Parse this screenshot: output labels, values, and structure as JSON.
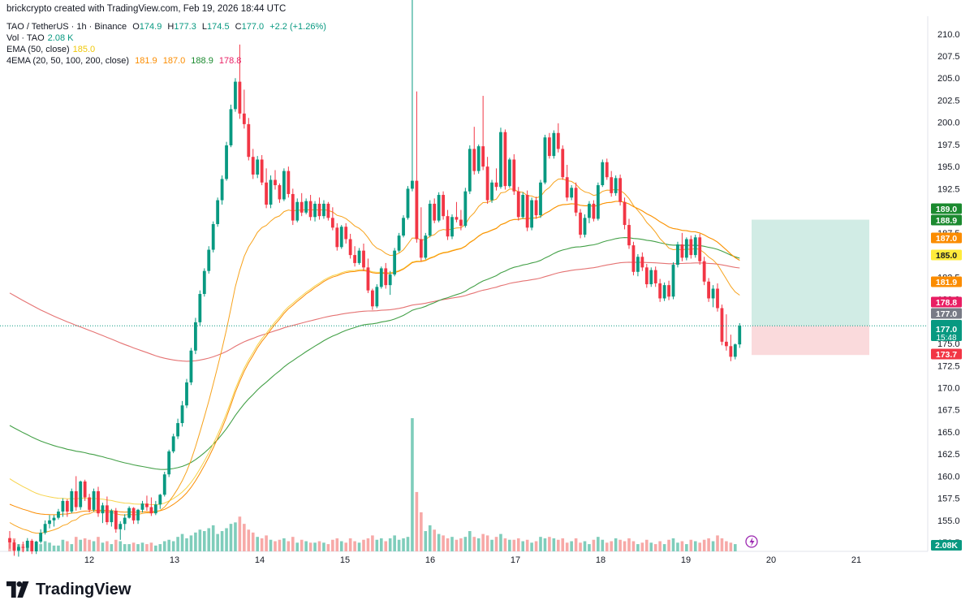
{
  "header": {
    "attribution": "brickcrypto created with TradingView.com, Feb 19, 2026 18:44 UTC",
    "symbol": "TAO / TetherUS · 1h · Binance",
    "o_label": "O",
    "o_value": "174.9",
    "h_label": "H",
    "h_value": "177.3",
    "l_label": "L",
    "l_value": "174.5",
    "c_label": "C",
    "c_value": "177.0",
    "change": "+2.2 (+1.26%)",
    "vol_label": "Vol · TAO",
    "vol_value": "2.08 K",
    "ema_label": "EMA (50, close)",
    "ema_value": "185.0",
    "ema4_label": "4EMA (20, 50, 100, 200, close)",
    "ema4_values": [
      "181.9",
      "187.0",
      "188.9",
      "178.8"
    ]
  },
  "brand": {
    "name": "TradingView"
  },
  "colors": {
    "up": "#089981",
    "down": "#f23645",
    "ema20": "#f7a21b",
    "ema50_yellow": "#f7d34a",
    "ema50": "#fb8c00",
    "ema100": "#43a047",
    "ema200": "#e57373",
    "target_zone": "#c9e9e0",
    "stop_zone": "#f9d3d6"
  },
  "chart_data": {
    "type": "candlestick",
    "symbol": "TAO / TetherUS",
    "interval": "1h",
    "exchange": "Binance",
    "x_tick_labels": [
      "12",
      "13",
      "14",
      "15",
      "16",
      "17",
      "18",
      "19",
      "20",
      "21"
    ],
    "y_tick_labels": [
      "210.0",
      "207.5",
      "205.0",
      "202.5",
      "200.0",
      "197.5",
      "195.0",
      "192.5",
      "187.5",
      "182.5",
      "180.0",
      "175.0",
      "172.5",
      "170.0",
      "167.5",
      "165.0",
      "162.5",
      "160.0",
      "157.5",
      "155.0",
      "152.5"
    ],
    "ylim": [
      151.5,
      212
    ],
    "last_price": 177.0,
    "countdown": "15:48",
    "price_labels": [
      {
        "value": "189.0",
        "color": "#1b8a2f"
      },
      {
        "value": "188.9",
        "color": "#1b8a2f"
      },
      {
        "value": "187.0",
        "color": "#fb8c00"
      },
      {
        "value": "185.0",
        "color": "#ffeb3b"
      },
      {
        "value": "181.9",
        "color": "#fb8c00"
      },
      {
        "value": "178.8",
        "color": "#e91e63"
      },
      {
        "value": "177.0",
        "color": "#787b86"
      },
      {
        "value": "177.0",
        "color": "#089981"
      },
      {
        "value": "173.7",
        "color": "#f23645"
      }
    ],
    "volume_label": "2.08K",
    "position": {
      "entry": 177.0,
      "target": 189.0,
      "stop": 173.7
    },
    "ohlc": [
      [
        153,
        153.8,
        151.8,
        152.5
      ],
      [
        152.5,
        152.8,
        151,
        151.6
      ],
      [
        151.6,
        152.3,
        150.9,
        152
      ],
      [
        152,
        152.6,
        151.4,
        151.9
      ],
      [
        151.9,
        153,
        151.5,
        152.7
      ],
      [
        152.7,
        152.9,
        151.2,
        151.5
      ],
      [
        151.5,
        152.7,
        151.2,
        152.6
      ],
      [
        152.6,
        154,
        152.4,
        153.6
      ],
      [
        153.6,
        155,
        153.4,
        154.6
      ],
      [
        154.6,
        155.6,
        154.1,
        155
      ],
      [
        155,
        155.6,
        154.3,
        155.3
      ],
      [
        155.3,
        156.3,
        155.1,
        156
      ],
      [
        156,
        157.5,
        155.4,
        157.2
      ],
      [
        157.2,
        157.4,
        155.4,
        156
      ],
      [
        156,
        158.6,
        155.8,
        158.3
      ],
      [
        158.3,
        160,
        156.1,
        156.5
      ],
      [
        156.5,
        159.5,
        156.2,
        159.4
      ],
      [
        159.4,
        159.6,
        157.2,
        157.6
      ],
      [
        157.6,
        158,
        155.9,
        156.2
      ],
      [
        156.2,
        158.6,
        156,
        158.3
      ],
      [
        158.3,
        158.8,
        155.4,
        155.8
      ],
      [
        155.8,
        157,
        154.7,
        156.7
      ],
      [
        156.7,
        157.7,
        154.5,
        154.8
      ],
      [
        154.8,
        156.3,
        154.3,
        156.1
      ],
      [
        156.1,
        156.4,
        153.6,
        154
      ],
      [
        154,
        154.9,
        152.8,
        154.6
      ],
      [
        154.6,
        155.7,
        153.9,
        155.3
      ],
      [
        155.3,
        156.6,
        155.2,
        156.4
      ],
      [
        156.4,
        156.5,
        154.6,
        155
      ],
      [
        155,
        156.3,
        154.6,
        156.2
      ],
      [
        156.2,
        157.2,
        155.9,
        156.9
      ],
      [
        156.9,
        157.8,
        156.1,
        156.5
      ],
      [
        156.5,
        157.6,
        155.5,
        155.8
      ],
      [
        155.8,
        157.2,
        155.6,
        156.8
      ],
      [
        156.8,
        158,
        156.3,
        157.9
      ],
      [
        157.9,
        160.5,
        157.7,
        160.2
      ],
      [
        160.2,
        163,
        159.9,
        162.8
      ],
      [
        162.8,
        164.8,
        162.6,
        164.5
      ],
      [
        164.5,
        166.5,
        164.2,
        166
      ],
      [
        166,
        168.5,
        165.6,
        168
      ],
      [
        168,
        171,
        167.7,
        170.6
      ],
      [
        170.6,
        174.5,
        170.3,
        174.2
      ],
      [
        174.2,
        177.9,
        173.8,
        177.4
      ],
      [
        177.4,
        181,
        177,
        180.6
      ],
      [
        180.6,
        183.5,
        180.3,
        183.2
      ],
      [
        183.2,
        186,
        182.9,
        185.6
      ],
      [
        185.6,
        188.8,
        185.3,
        188.5
      ],
      [
        188.5,
        191.5,
        188.2,
        191.2
      ],
      [
        191.2,
        194,
        190.7,
        193.6
      ],
      [
        193.6,
        197.8,
        193.4,
        197.4
      ],
      [
        197.4,
        202,
        197.2,
        201.5
      ],
      [
        201.5,
        205,
        201.2,
        204.6
      ],
      [
        204.6,
        208.8,
        200.4,
        201
      ],
      [
        201,
        203.7,
        199.3,
        199.8
      ],
      [
        199.8,
        200.5,
        195.7,
        196.1
      ],
      [
        196.1,
        197,
        193.6,
        194.1
      ],
      [
        194.1,
        196.2,
        193.7,
        195.8
      ],
      [
        195.8,
        196.3,
        192.9,
        193.2
      ],
      [
        193.2,
        194.8,
        190.3,
        190.7
      ],
      [
        190.7,
        194,
        190.3,
        193.5
      ],
      [
        193.5,
        194.6,
        192.4,
        192.9
      ],
      [
        192.9,
        193.1,
        190.9,
        191.3
      ],
      [
        191.3,
        194.8,
        191.1,
        194.5
      ],
      [
        194.5,
        195,
        191.5,
        191.9
      ],
      [
        191.9,
        192.5,
        188.4,
        188.9
      ],
      [
        188.9,
        191.4,
        188.7,
        191
      ],
      [
        191,
        192,
        189.4,
        189.8
      ],
      [
        189.8,
        191.4,
        189.6,
        191.1
      ],
      [
        191.1,
        191.8,
        188.9,
        189.3
      ],
      [
        189.3,
        191.1,
        188.8,
        190.8
      ],
      [
        190.8,
        191.5,
        189,
        189.4
      ],
      [
        189.4,
        191.2,
        189.1,
        190.8
      ],
      [
        190.8,
        191,
        188.9,
        189.2
      ],
      [
        189.2,
        190.4,
        187.8,
        188.1
      ],
      [
        188.1,
        188.6,
        185.5,
        185.9
      ],
      [
        185.9,
        188.4,
        185.7,
        188.2
      ],
      [
        188.2,
        188.6,
        186.3,
        186.8
      ],
      [
        186.8,
        187.4,
        184.6,
        185
      ],
      [
        185,
        186,
        183.7,
        184.1
      ],
      [
        184.1,
        185.8,
        183.9,
        185.5
      ],
      [
        185.5,
        186.3,
        183.2,
        183.6
      ],
      [
        183.6,
        184.6,
        180.7,
        181
      ],
      [
        181,
        181.2,
        178.8,
        179.2
      ],
      [
        179.2,
        181.7,
        179,
        181.4
      ],
      [
        181.4,
        183.7,
        181.2,
        183.5
      ],
      [
        183.5,
        184.1,
        181.2,
        181.6
      ],
      [
        181.6,
        183.2,
        180.5,
        182.8
      ],
      [
        182.8,
        185.8,
        182.6,
        185.5
      ],
      [
        185.5,
        187.5,
        185.3,
        187.2
      ],
      [
        187.2,
        189.5,
        187,
        189.2
      ],
      [
        189.2,
        192.8,
        189,
        192.5
      ],
      [
        192.5,
        214,
        192.2,
        193.4
      ],
      [
        193.4,
        203.5,
        186.4,
        186.8
      ],
      [
        186.8,
        190.4,
        184.3,
        184.7
      ],
      [
        184.7,
        187.5,
        184.5,
        187.2
      ],
      [
        187.2,
        191.2,
        187,
        190.8
      ],
      [
        190.8,
        191.4,
        188.6,
        188.9
      ],
      [
        188.9,
        192.1,
        188.7,
        191.8
      ],
      [
        191.8,
        192.2,
        189,
        189.4
      ],
      [
        189.4,
        190.1,
        186.7,
        187.1
      ],
      [
        187.1,
        189.6,
        186.8,
        189.3
      ],
      [
        189.3,
        191,
        188.7,
        189
      ],
      [
        189,
        190.1,
        187.8,
        188.3
      ],
      [
        188.3,
        192.6,
        188.1,
        192.2
      ],
      [
        192.2,
        197.4,
        191.9,
        197
      ],
      [
        197,
        199.5,
        194.1,
        194.5
      ],
      [
        194.5,
        197.5,
        194.2,
        197.3
      ],
      [
        197.3,
        203,
        194.6,
        195
      ],
      [
        195,
        196.1,
        190.8,
        191.2
      ],
      [
        191.2,
        193.5,
        190.9,
        193.2
      ],
      [
        193.2,
        194.8,
        192.3,
        192.7
      ],
      [
        192.7,
        199.4,
        192.5,
        198.9
      ],
      [
        198.9,
        199.2,
        192.4,
        192.8
      ],
      [
        192.8,
        196,
        192.6,
        195.8
      ],
      [
        195.8,
        196.4,
        191.8,
        192.2
      ],
      [
        192.2,
        192.7,
        188.9,
        189.3
      ],
      [
        189.3,
        192.1,
        189.1,
        191.8
      ],
      [
        191.8,
        192.3,
        187.7,
        188.1
      ],
      [
        188.1,
        191.5,
        187.8,
        191.2
      ],
      [
        191.2,
        191.6,
        189.1,
        189.5
      ],
      [
        189.5,
        193.5,
        189.2,
        193.2
      ],
      [
        193.2,
        198.6,
        193,
        198.3
      ],
      [
        198.3,
        198.8,
        195.9,
        196.2
      ],
      [
        196.2,
        199.1,
        195.9,
        198.8
      ],
      [
        198.8,
        199.9,
        196.6,
        197
      ],
      [
        197,
        197.4,
        193.5,
        193.8
      ],
      [
        193.8,
        195.2,
        191.1,
        191.5
      ],
      [
        191.5,
        192.9,
        191.2,
        192.6
      ],
      [
        192.6,
        193.2,
        189.4,
        189.8
      ],
      [
        189.8,
        190.2,
        186.9,
        187.3
      ],
      [
        187.3,
        189.6,
        187,
        189.2
      ],
      [
        189.2,
        191.1,
        188.6,
        190.8
      ],
      [
        190.8,
        191.2,
        188.8,
        189.1
      ],
      [
        189.1,
        193.2,
        188.9,
        192.9
      ],
      [
        192.9,
        195.8,
        192.7,
        195.5
      ],
      [
        195.5,
        195.9,
        193.5,
        193.8
      ],
      [
        193.8,
        194.5,
        191.6,
        192
      ],
      [
        192,
        194,
        191.7,
        193.7
      ],
      [
        193.7,
        194.1,
        190.6,
        191
      ],
      [
        191,
        191.5,
        187.9,
        188.4
      ],
      [
        188.4,
        189.1,
        185.7,
        186.1
      ],
      [
        186.1,
        186.5,
        182.7,
        183.1
      ],
      [
        183.1,
        185.1,
        182.6,
        184.8
      ],
      [
        184.8,
        185.3,
        183.2,
        183.6
      ],
      [
        183.6,
        184,
        181.3,
        181.7
      ],
      [
        181.7,
        183.6,
        181.4,
        183.3
      ],
      [
        183.3,
        183.7,
        181.4,
        181.8
      ],
      [
        181.8,
        182.3,
        179.7,
        180.1
      ],
      [
        180.1,
        181.9,
        179.8,
        181.6
      ],
      [
        181.6,
        182.1,
        179.9,
        180.3
      ],
      [
        180.3,
        184.2,
        180,
        183.9
      ],
      [
        183.9,
        186.5,
        183.6,
        186.2
      ],
      [
        186.2,
        187.5,
        184.3,
        184.7
      ],
      [
        184.7,
        187,
        184.4,
        186.8
      ],
      [
        186.8,
        187.2,
        184.6,
        185
      ],
      [
        185,
        187.3,
        184.7,
        187
      ],
      [
        187,
        187.4,
        183.9,
        184.3
      ],
      [
        184.3,
        184.8,
        181.6,
        182
      ],
      [
        182,
        182.4,
        179.7,
        180.1
      ],
      [
        180.1,
        181.6,
        179.1,
        181.2
      ],
      [
        181.2,
        181.8,
        178.6,
        179
      ],
      [
        179,
        179.4,
        174.8,
        175.2
      ],
      [
        175.2,
        178.3,
        174.2,
        174.7
      ],
      [
        174.7,
        176,
        173,
        173.5
      ],
      [
        173.5,
        175,
        173.2,
        174.9
      ],
      [
        174.9,
        177.3,
        174.5,
        177
      ]
    ],
    "volume": [
      0.6,
      0.9,
      0.5,
      0.5,
      0.4,
      0.6,
      0.3,
      0.5,
      0.7,
      0.6,
      0.4,
      0.4,
      0.8,
      0.7,
      0.5,
      1,
      0.8,
      0.9,
      0.8,
      0.7,
      1,
      0.6,
      0.7,
      0.5,
      0.8,
      0.7,
      0.5,
      0.5,
      0.6,
      0.5,
      0.6,
      0.5,
      0.6,
      0.4,
      0.5,
      0.7,
      0.8,
      0.7,
      1,
      1.2,
      0.9,
      1.1,
      1.3,
      1.5,
      1.4,
      1.6,
      1.8,
      1.2,
      1.4,
      1.6,
      1.9,
      2,
      2.4,
      1.9,
      1.5,
      1.3,
      1,
      0.9,
      1.1,
      0.8,
      0.7,
      0.8,
      0.9,
      0.7,
      1,
      0.6,
      0.8,
      0.7,
      0.6,
      0.6,
      0.7,
      0.6,
      0.5,
      0.8,
      0.9,
      0.7,
      0.6,
      0.9,
      0.7,
      0.6,
      0.8,
      0.9,
      1.1,
      0.8,
      0.9,
      0.7,
      0.9,
      1.1,
      0.8,
      0.9,
      1,
      9.2,
      4.1,
      2.7,
      1.4,
      1.8,
      1.5,
      1.2,
      1.1,
      0.9,
      1,
      0.8,
      0.9,
      1,
      1.4,
      1,
      0.9,
      1.2,
      1.1,
      0.8,
      1,
      1.2,
      0.9,
      0.8,
      0.8,
      0.9,
      0.7,
      0.8,
      0.6,
      0.7,
      1,
      0.9,
      1,
      0.9,
      0.8,
      0.9,
      0.6,
      0.7,
      0.9,
      0.6,
      0.7,
      0.5,
      0.8,
      1,
      0.8,
      0.6,
      0.7,
      0.9,
      0.8,
      0.7,
      0.9,
      0.7,
      0.5,
      0.6,
      0.8,
      0.6,
      0.5,
      0.7,
      0.5,
      0.8,
      0.9,
      0.6,
      0.7,
      0.5,
      0.8,
      0.7,
      0.6,
      0.8,
      0.9,
      0.7,
      1.1,
      0.9,
      0.7,
      0.6,
      0.5
    ]
  }
}
